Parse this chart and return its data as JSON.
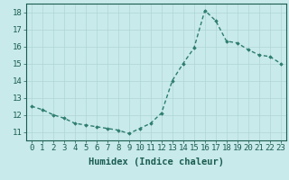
{
  "x": [
    0,
    1,
    2,
    3,
    4,
    5,
    6,
    7,
    8,
    9,
    10,
    11,
    12,
    13,
    14,
    15,
    16,
    17,
    18,
    19,
    20,
    21,
    22,
    23
  ],
  "y": [
    12.5,
    12.3,
    12.0,
    11.8,
    11.5,
    11.4,
    11.3,
    11.2,
    11.1,
    10.9,
    11.2,
    11.5,
    12.1,
    14.0,
    15.0,
    15.9,
    18.1,
    17.5,
    16.3,
    16.2,
    15.8,
    15.5,
    15.4,
    15.0
  ],
  "line_color": "#2e7d6e",
  "marker": "D",
  "marker_size": 1.8,
  "bg_color": "#c8eaea",
  "grid_color": "#b0d5d5",
  "xlabel": "Humidex (Indice chaleur)",
  "xlim": [
    -0.5,
    23.5
  ],
  "ylim": [
    10.5,
    18.5
  ],
  "yticks": [
    11,
    12,
    13,
    14,
    15,
    16,
    17,
    18
  ],
  "xtick_labels": [
    "0",
    "1",
    "2",
    "3",
    "4",
    "5",
    "6",
    "7",
    "8",
    "9",
    "10",
    "11",
    "12",
    "13",
    "14",
    "15",
    "16",
    "17",
    "18",
    "19",
    "20",
    "21",
    "22",
    "23"
  ],
  "xlabel_fontsize": 7.5,
  "tick_fontsize": 6.5,
  "tick_color": "#1a5c50",
  "axis_color": "#1a5c50",
  "line_width": 1.0
}
